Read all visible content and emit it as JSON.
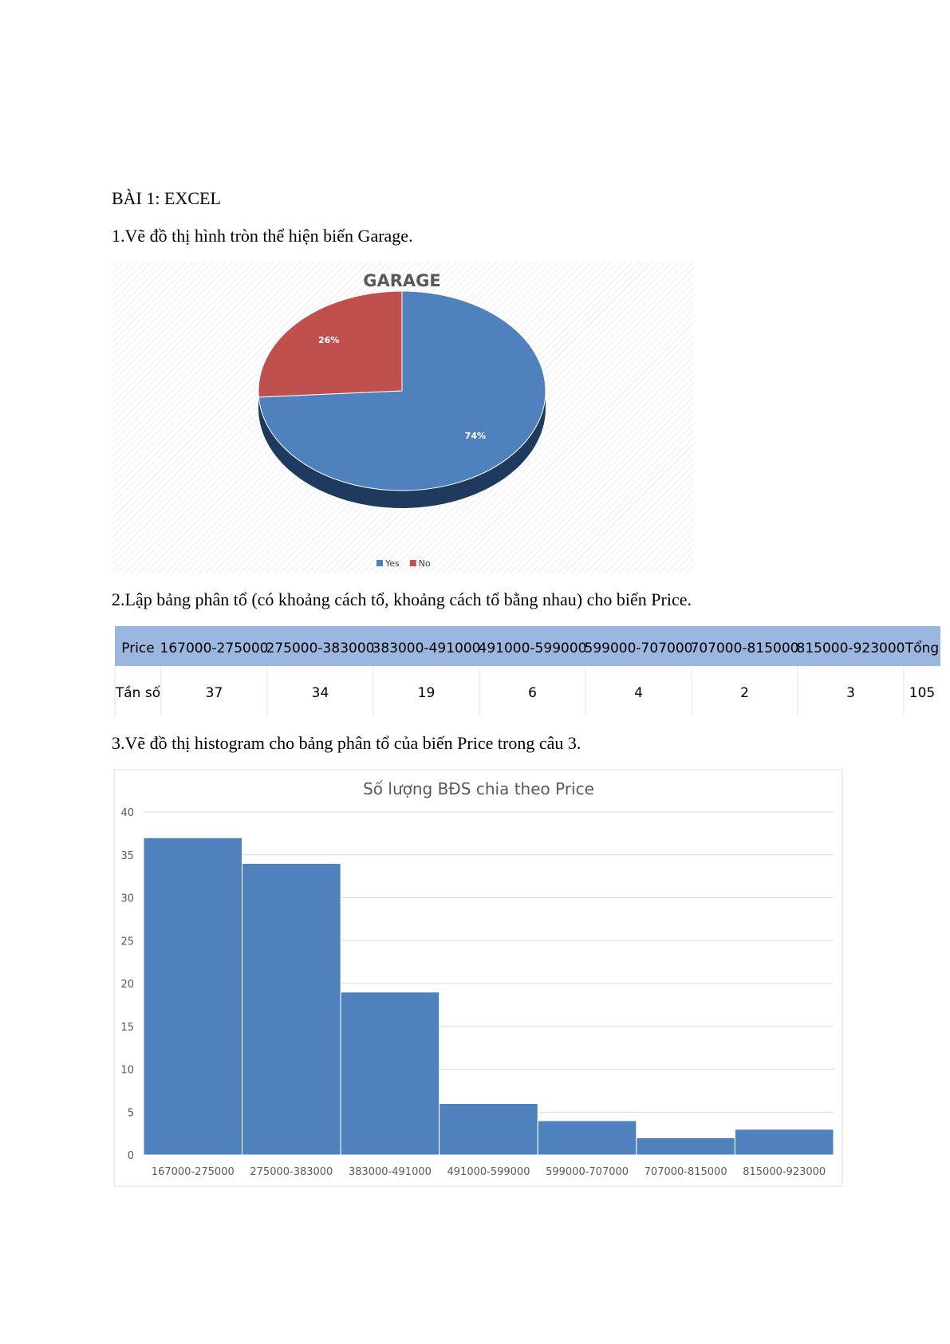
{
  "heading": "BÀI 1: EXCEL",
  "questions": [
    "1.Vẽ đồ thị hình tròn thể hiện biến Garage.",
    "2.Lập bảng phân tổ (có khoảng cách tổ, khoảng cách tổ bằng nhau) cho biến Price.",
    "3.Vẽ đồ thị histogram cho bảng phân tổ của biến Price trong câu 3."
  ],
  "table": {
    "header": [
      "Price",
      "167000-275000",
      "275000-383000",
      "383000-491000",
      "491000-599000",
      "599000-707000",
      "707000-815000",
      "815000-923000",
      "Tổng"
    ],
    "rows": [
      [
        "Tần số",
        "37",
        "34",
        "19",
        "6",
        "4",
        "2",
        "3",
        "105"
      ]
    ]
  },
  "chart_data": [
    {
      "type": "pie",
      "title": "GARAGE",
      "categories": [
        "Yes",
        "No"
      ],
      "values": [
        74,
        26
      ],
      "value_labels": [
        "74%",
        "26%"
      ],
      "colors": [
        "#4f81bd",
        "#c0504d"
      ],
      "legend": "bottom"
    },
    {
      "type": "bar",
      "title": "Số lượng BĐS chia theo Price",
      "categories": [
        "167000-275000",
        "275000-383000",
        "383000-491000",
        "491000-599000",
        "599000-707000",
        "707000-815000",
        "815000-923000"
      ],
      "values": [
        37,
        34,
        19,
        6,
        4,
        2,
        3
      ],
      "color": "#4f81bd",
      "ylim": [
        0,
        40
      ],
      "yticks": [
        0,
        5,
        10,
        15,
        20,
        25,
        30,
        35,
        40
      ],
      "grid": true
    }
  ]
}
